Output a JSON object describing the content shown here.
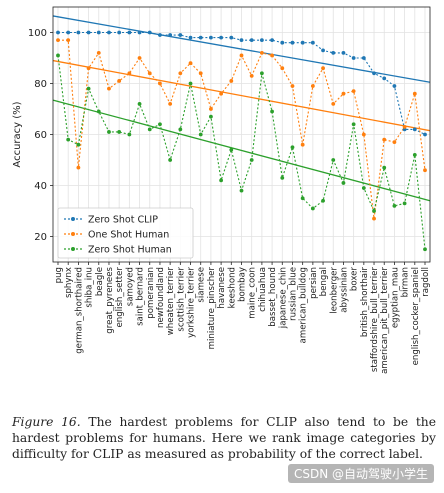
{
  "chart_data": {
    "type": "line",
    "ylabel": "Accuracy (%)",
    "xlabel": "",
    "ylim": [
      10,
      110
    ],
    "yticks": [
      20,
      40,
      60,
      80,
      100
    ],
    "grid": true,
    "legend_position": "bottom-left",
    "categories": [
      "pug",
      "sphynx",
      "german_shorthaired",
      "shiba_inu",
      "beagle",
      "great_pyrenees",
      "english_setter",
      "samoyed",
      "saint_bernard",
      "pomeranian",
      "newfoundland",
      "wheaten_terrier",
      "scottish_terrier",
      "yorkshire_terrier",
      "siamese",
      "miniature_pinscher",
      "havanese",
      "keeshond",
      "bombay",
      "maine_coon",
      "chihuahua",
      "basset_hound",
      "japanese_chin",
      "russian_blue",
      "american_bulldog",
      "persian",
      "bengal",
      "leonberger",
      "abyssinian",
      "boxer",
      "british_shorthair",
      "staffordshire_bull_terrier",
      "american_pit_bull_terrier",
      "egyptian_mau",
      "birman",
      "english_cocker_spaniel",
      "ragdoll"
    ],
    "tick_labels": [
      "pug",
      "sphynx",
      "german_shorthaired",
      "shiba_inu",
      "beagle",
      "great_pyrenees",
      "english_setter",
      "samoyed",
      "saint_bernard",
      "pomeranian",
      "newfoundland",
      "wheaten_terrier",
      "scottish_terrier",
      "yorkshire_terrier",
      "siamese",
      "miniature_pinscher",
      "havanese",
      "keeshond",
      "bombay",
      "maine_coon",
      "chihuahua",
      "basset_hound",
      "japanese_chin",
      "russian_blue",
      "american_bulldog",
      "persian",
      "bengal",
      "leonberger",
      "abyssinian",
      "boxer",
      "british_shorthair",
      "staffordshire_bull_terrier",
      "american_pit_bull_terrier",
      "egyptian_mau",
      "birman",
      "english_cocker_spaniel",
      "ragdoll"
    ],
    "series": [
      {
        "name": "Zero Shot CLIP",
        "color": "#1f77b4",
        "values": [
          100,
          100,
          100,
          100,
          100,
          100,
          100,
          100,
          100,
          100,
          99,
          99,
          99,
          98,
          98,
          98,
          98,
          98,
          97,
          97,
          97,
          97,
          96,
          96,
          96,
          96,
          93,
          92,
          92,
          90,
          90,
          84,
          82,
          79,
          62,
          62,
          60
        ]
      },
      {
        "name": "One Shot Human",
        "color": "#ff7f0e",
        "values": [
          97,
          97,
          47,
          86,
          92,
          78,
          81,
          84,
          90,
          84,
          80,
          72,
          84,
          88,
          84,
          70,
          76,
          81,
          91,
          83,
          92,
          91,
          86,
          79,
          56,
          79,
          86,
          72,
          76,
          77,
          60,
          27,
          58,
          57,
          63,
          76,
          46
        ]
      },
      {
        "name": "Zero Shot Human",
        "color": "#2ca02c",
        "values": [
          91,
          58,
          56,
          78,
          69,
          61,
          61,
          60,
          72,
          62,
          64,
          50,
          62,
          80,
          60,
          67,
          42,
          54,
          38,
          50,
          84,
          69,
          43,
          55,
          35,
          31,
          34,
          50,
          41,
          64,
          39,
          30,
          47,
          32,
          33,
          52,
          15
        ]
      }
    ],
    "trend_lines": [
      {
        "series": "Zero Shot CLIP",
        "color": "#1f77b4",
        "start": 106.5,
        "end": 80.5
      },
      {
        "series": "One Shot Human",
        "color": "#ff7f0e",
        "start": 89,
        "end": 61.5
      },
      {
        "series": "Zero Shot Human",
        "color": "#2ca02c",
        "start": 73.5,
        "end": 34
      }
    ]
  },
  "caption": {
    "figure_label": "Figure 16.",
    "text": "The hardest problems for CLIP also tend to be the hardest problems for humans. Here we rank image categories by difficulty for CLIP as measured as probability of the correct label."
  },
  "watermark": "CSDN @自动驾驶小学生"
}
